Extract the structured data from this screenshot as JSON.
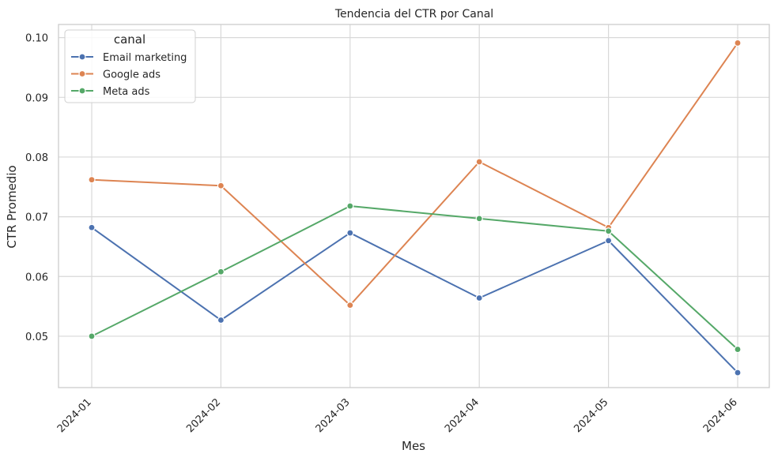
{
  "chart_data": {
    "type": "line",
    "title": "Tendencia del CTR por Canal",
    "xlabel": "Mes",
    "ylabel": "CTR Promedio",
    "x": [
      "2024-01",
      "2024-02",
      "2024-03",
      "2024-04",
      "2024-05",
      "2024-06"
    ],
    "y_ticks": [
      "0.05",
      "0.06",
      "0.07",
      "0.08",
      "0.09",
      "0.10"
    ],
    "ylim": [
      0.0414,
      0.1022
    ],
    "grid": true,
    "legend": {
      "title": "canal",
      "position": "top-left"
    },
    "series": [
      {
        "name": "Email marketing",
        "color": "#4c72b0",
        "values": [
          0.0682,
          0.0527,
          0.0673,
          0.0564,
          0.066,
          0.0439
        ]
      },
      {
        "name": "Google ads",
        "color": "#dd8452",
        "values": [
          0.0762,
          0.0752,
          0.0552,
          0.0792,
          0.0682,
          0.0991
        ]
      },
      {
        "name": "Meta ads",
        "color": "#55a868",
        "values": [
          0.05,
          0.0608,
          0.0718,
          0.0697,
          0.0676,
          0.0478
        ]
      }
    ]
  }
}
